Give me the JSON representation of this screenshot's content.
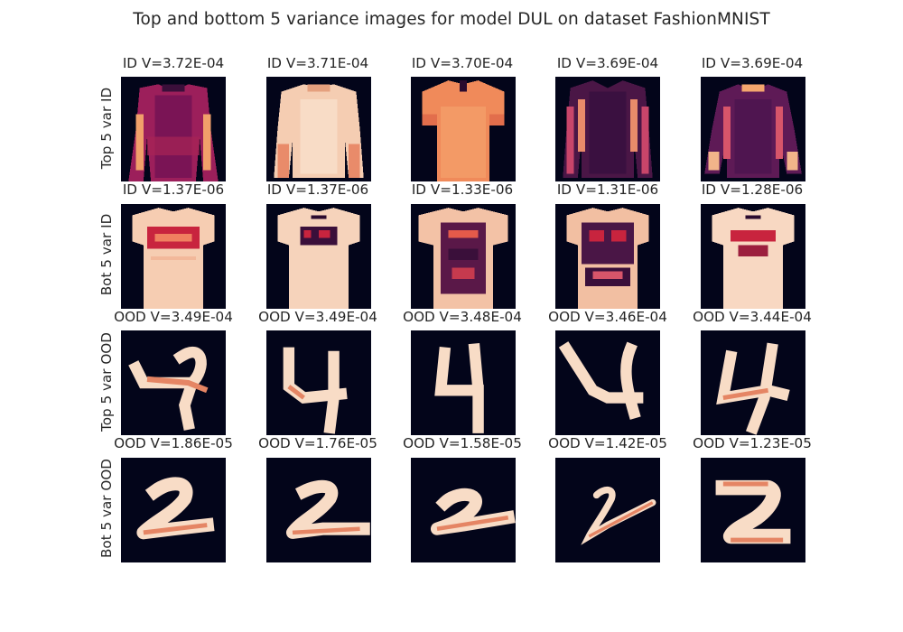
{
  "chart_data": {
    "type": "image_grid",
    "title": "Top and bottom 5 variance images for model DUL on dataset FashionMNIST",
    "colormap": "rocket",
    "rows": [
      {
        "label": "Top 5 var ID",
        "cells": [
          {
            "title": "ID V=3.72E-04",
            "subject": "long-sleeve-top-magenta-icon"
          },
          {
            "title": "ID V=3.71E-04",
            "subject": "long-sleeve-top-light-icon"
          },
          {
            "title": "ID V=3.70E-04",
            "subject": "t-shirt-orange-icon"
          },
          {
            "title": "ID V=3.69E-04",
            "subject": "long-sleeve-top-dark-icon"
          },
          {
            "title": "ID V=3.69E-04",
            "subject": "long-sleeve-top-purple-icon"
          }
        ]
      },
      {
        "label": "Bot 5 var ID",
        "cells": [
          {
            "title": "ID V=1.37E-06",
            "subject": "printed-t-shirt-icon"
          },
          {
            "title": "ID V=1.37E-06",
            "subject": "printed-t-shirt-icon"
          },
          {
            "title": "ID V=1.33E-06",
            "subject": "printed-t-shirt-icon"
          },
          {
            "title": "ID V=1.31E-06",
            "subject": "printed-t-shirt-icon"
          },
          {
            "title": "ID V=1.28E-06",
            "subject": "printed-t-shirt-icon"
          }
        ]
      },
      {
        "label": "Top 5 var OOD",
        "cells": [
          {
            "title": "OOD V=3.49E-04",
            "subject": "digit-4-icon"
          },
          {
            "title": "OOD V=3.49E-04",
            "subject": "digit-4-icon"
          },
          {
            "title": "OOD V=3.48E-04",
            "subject": "digit-4-icon"
          },
          {
            "title": "OOD V=3.46E-04",
            "subject": "digit-4-icon"
          },
          {
            "title": "OOD V=3.44E-04",
            "subject": "digit-4-icon"
          }
        ]
      },
      {
        "label": "Bot 5 var OOD",
        "cells": [
          {
            "title": "OOD V=1.86E-05",
            "subject": "digit-2-icon"
          },
          {
            "title": "OOD V=1.76E-05",
            "subject": "digit-2-icon"
          },
          {
            "title": "OOD V=1.58E-05",
            "subject": "digit-2-icon"
          },
          {
            "title": "OOD V=1.42E-05",
            "subject": "digit-2-icon"
          },
          {
            "title": "OOD V=1.23E-05",
            "subject": "digit-2-icon"
          }
        ]
      }
    ]
  }
}
